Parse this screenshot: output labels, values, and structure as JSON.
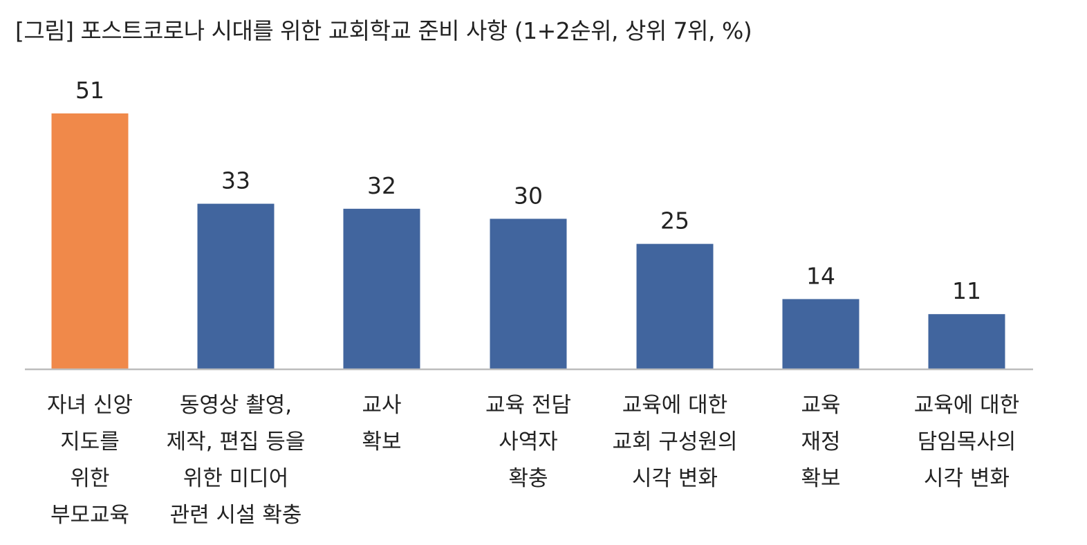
{
  "chart_data": {
    "type": "bar",
    "title": "[그림] 포스트코로나 시대를 위한 교회학교 준비 사항 (1+2순위, 상위 7위, %)",
    "categories": [
      "자녀 신앙\n지도를\n위한\n부모교육",
      "동영상 촬영,\n제작, 편집 등을\n위한 미디어\n관련 시설 확충",
      "교사\n확보",
      "교육 전담\n사역자\n확충",
      "교육에 대한\n교회 구성원의\n시각 변화",
      "교육\n재정\n확보",
      "교육에 대한\n담임목사의\n시각 변화"
    ],
    "values": [
      51,
      33,
      32,
      30,
      25,
      14,
      11
    ],
    "value_labels": [
      "51",
      "33",
      "32",
      "30",
      "25",
      "14",
      "11"
    ],
    "highlight_index": 0,
    "colors": {
      "highlight": "#F0894A",
      "default": "#41659E",
      "axis": "#bdbdbd"
    },
    "ylim": [
      0,
      51
    ],
    "grid": false,
    "legend": "none"
  }
}
